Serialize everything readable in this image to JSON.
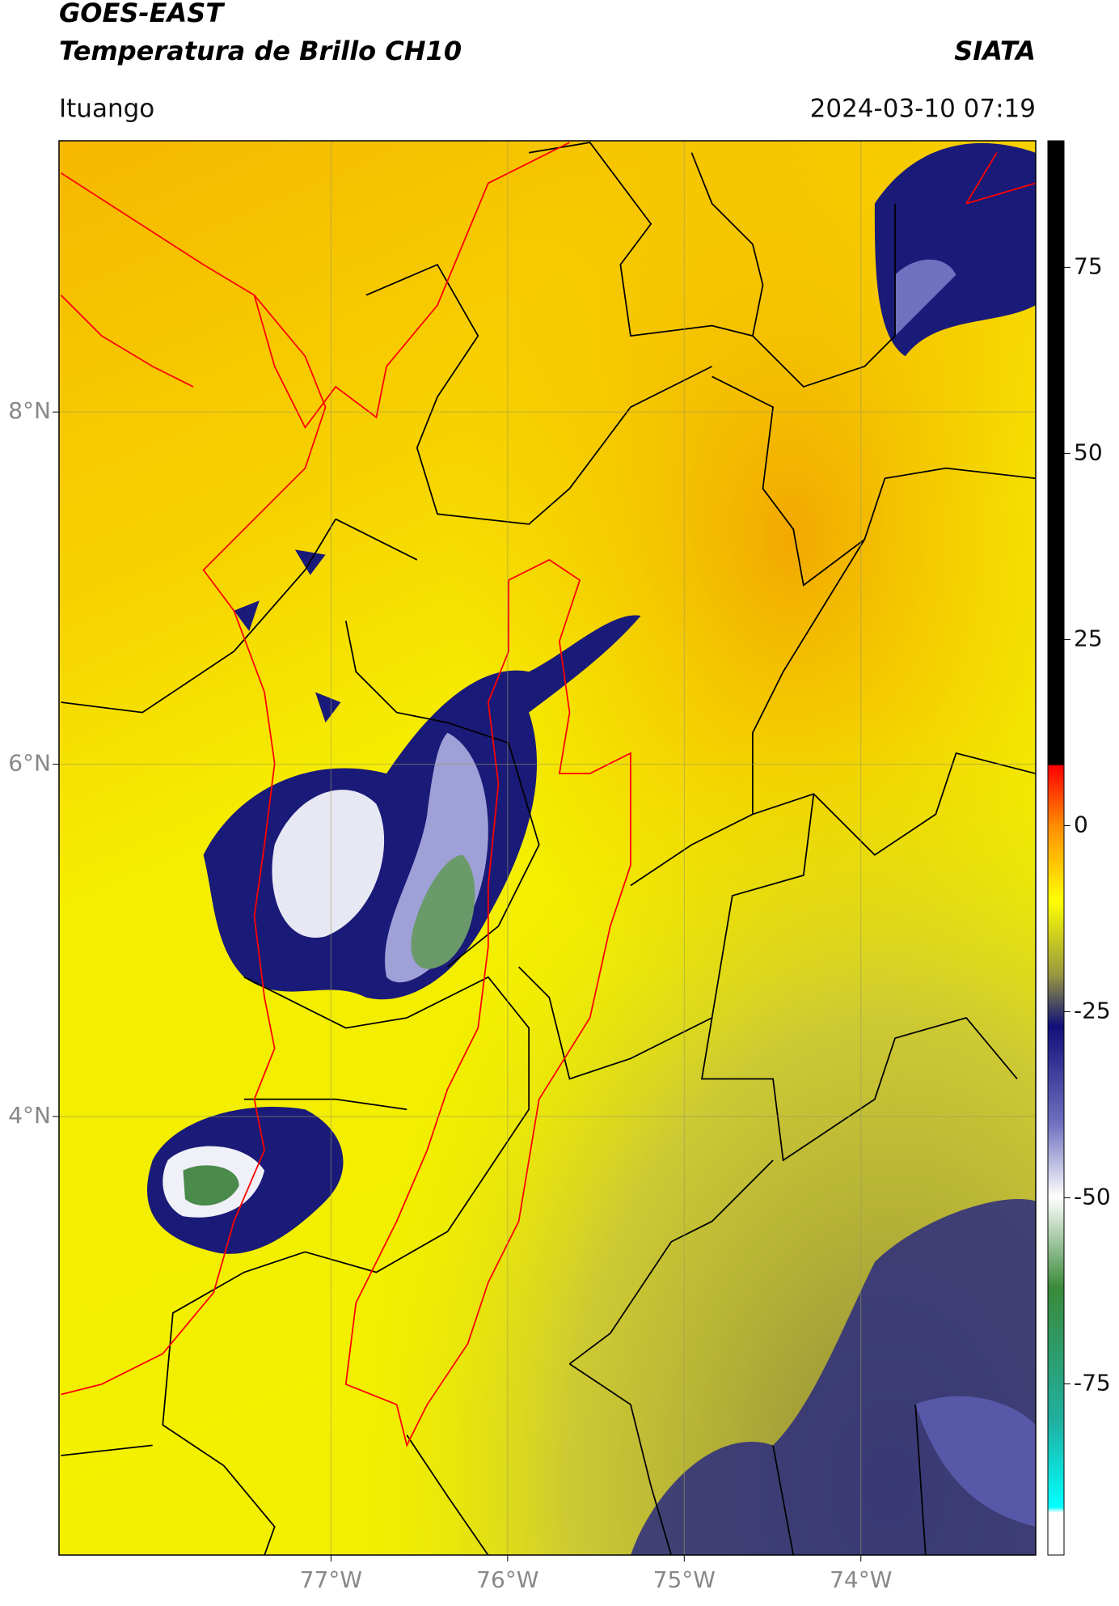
{
  "chart_data": {
    "type": "map",
    "title": "GOES-EAST",
    "subtitle": "Temperatura de Brillo CH10",
    "source": "SIATA",
    "location": "Ituango",
    "timestamp": "2024-03-10 07:19",
    "xlim": [
      -78.54,
      -73.01
    ],
    "ylim": [
      1.51,
      9.54
    ],
    "xticks": [
      {
        "value": -77,
        "label": "77°W"
      },
      {
        "value": -76,
        "label": "76°W"
      },
      {
        "value": -75,
        "label": "75°W"
      },
      {
        "value": -74,
        "label": "74°W"
      }
    ],
    "yticks": [
      {
        "value": 8,
        "label": "8°N"
      },
      {
        "value": 6,
        "label": "6°N"
      },
      {
        "value": 4,
        "label": "4°N"
      }
    ],
    "grid": true,
    "colorbar": {
      "lim": [
        -98,
        92
      ],
      "ticks": [
        75,
        50,
        25,
        0,
        -25,
        -50,
        -75
      ]
    }
  }
}
